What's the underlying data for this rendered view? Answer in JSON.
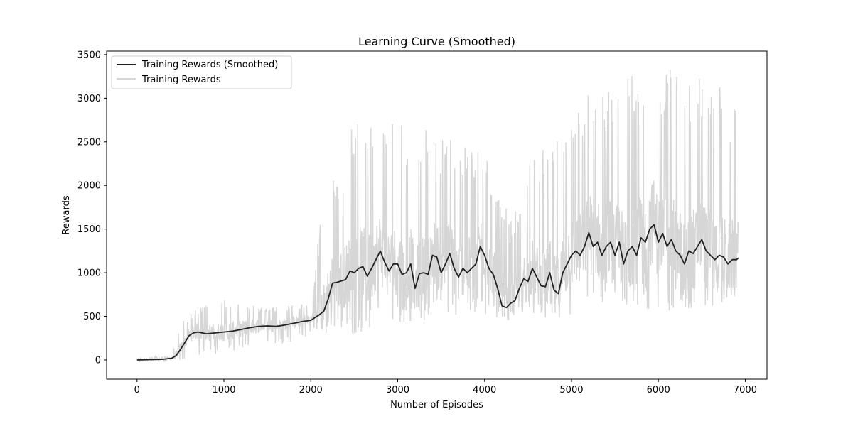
{
  "chart_data": {
    "type": "line",
    "title": "Learning Curve (Smoothed)",
    "xlabel": "Number of Episodes",
    "ylabel": "Rewards",
    "xlim": [
      -350,
      7250
    ],
    "ylim": [
      -220,
      3540
    ],
    "x_ticks": [
      0,
      1000,
      2000,
      3000,
      4000,
      5000,
      6000,
      7000
    ],
    "y_ticks": [
      0,
      500,
      1000,
      1500,
      2000,
      2500,
      3000,
      3500
    ],
    "x_tick_labels": [
      "0",
      "1000",
      "2000",
      "3000",
      "4000",
      "5000",
      "6000",
      "7000"
    ],
    "y_tick_labels": [
      "0",
      "500",
      "1000",
      "1500",
      "2000",
      "2500",
      "3000",
      "3500"
    ],
    "grid": false,
    "legend_position": "top-left",
    "series": [
      {
        "name": "Training Rewards (Smoothed)",
        "color": "#222222",
        "x": [
          0,
          100,
          200,
          300,
          400,
          450,
          500,
          550,
          600,
          650,
          700,
          800,
          900,
          1000,
          1100,
          1200,
          1300,
          1400,
          1500,
          1600,
          1700,
          1800,
          1900,
          2000,
          2100,
          2150,
          2200,
          2250,
          2300,
          2400,
          2450,
          2500,
          2550,
          2600,
          2650,
          2700,
          2750,
          2800,
          2850,
          2900,
          2950,
          3000,
          3050,
          3100,
          3150,
          3200,
          3250,
          3300,
          3350,
          3400,
          3450,
          3500,
          3550,
          3600,
          3650,
          3700,
          3750,
          3800,
          3850,
          3900,
          3950,
          4000,
          4050,
          4100,
          4150,
          4200,
          4250,
          4300,
          4350,
          4400,
          4450,
          4500,
          4550,
          4600,
          4650,
          4700,
          4750,
          4800,
          4850,
          4900,
          4950,
          5000,
          5050,
          5100,
          5150,
          5200,
          5250,
          5300,
          5350,
          5400,
          5450,
          5500,
          5550,
          5600,
          5650,
          5700,
          5750,
          5800,
          5850,
          5900,
          5950,
          6000,
          6050,
          6100,
          6150,
          6200,
          6250,
          6300,
          6350,
          6400,
          6450,
          6500,
          6550,
          6600,
          6650,
          6700,
          6750,
          6800,
          6850,
          6900,
          6920
        ],
        "values": [
          0,
          3,
          5,
          8,
          20,
          50,
          120,
          200,
          280,
          310,
          320,
          300,
          310,
          320,
          330,
          350,
          370,
          385,
          390,
          385,
          400,
          420,
          440,
          455,
          520,
          560,
          700,
          880,
          890,
          920,
          1020,
          1000,
          1050,
          1070,
          960,
          1050,
          1150,
          1250,
          1120,
          1020,
          1100,
          1100,
          980,
          1000,
          1100,
          820,
          990,
          1000,
          980,
          1200,
          1180,
          1000,
          1100,
          1220,
          1050,
          950,
          1050,
          1000,
          1050,
          1100,
          1300,
          1200,
          1050,
          980,
          820,
          620,
          600,
          650,
          680,
          820,
          930,
          900,
          1050,
          950,
          850,
          840,
          1000,
          800,
          760,
          1000,
          1100,
          1200,
          1250,
          1200,
          1300,
          1460,
          1300,
          1350,
          1200,
          1300,
          1350,
          1200,
          1350,
          1100,
          1250,
          1300,
          1200,
          1400,
          1350,
          1500,
          1550,
          1350,
          1450,
          1300,
          1380,
          1250,
          1200,
          1100,
          1250,
          1220,
          1300,
          1380,
          1250,
          1200,
          1150,
          1200,
          1180,
          1100,
          1150,
          1150,
          1170
        ]
      },
      {
        "name": "Training Rewards",
        "color": "#d6d6d6",
        "noise_profile": {
          "x": [
            0,
            400,
            500,
            700,
            1000,
            1500,
            2000,
            2200,
            2300,
            2500,
            3000,
            3500,
            4000,
            4300,
            4500,
            5000,
            5500,
            6000,
            6500,
            6920
          ],
          "low": [
            -20,
            -20,
            0,
            50,
            80,
            150,
            250,
            300,
            320,
            300,
            400,
            450,
            500,
            450,
            450,
            500,
            500,
            550,
            550,
            700
          ],
          "high": [
            30,
            50,
            450,
            600,
            700,
            600,
            650,
            2400,
            2000,
            2800,
            2700,
            2600,
            2400,
            1600,
            2200,
            3000,
            3250,
            3350,
            3300,
            3000
          ]
        }
      }
    ]
  }
}
